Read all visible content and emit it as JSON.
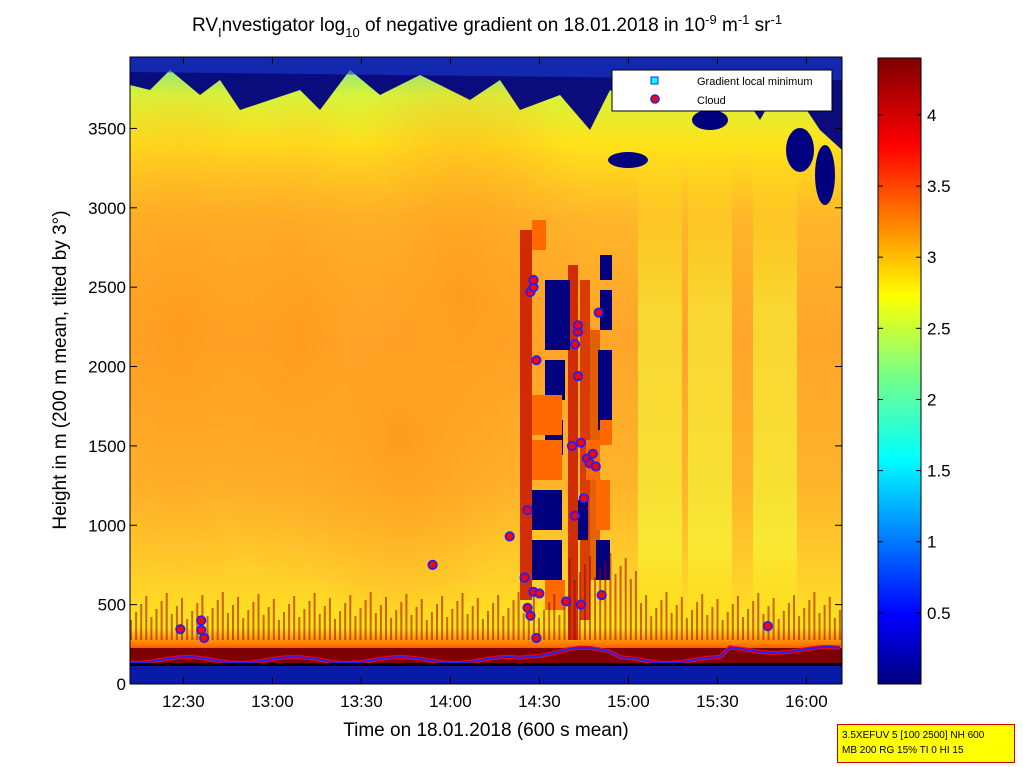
{
  "chart_data": {
    "type": "heatmap",
    "title": {
      "pre": "RV",
      "sub1": "I",
      "mid1": "nvestigator log",
      "sub2": "10",
      "mid2": " of negative gradient on 18.01.2018 in 10",
      "sup1": "-9",
      "mid3": " m",
      "sup2": "-1",
      "mid4": " sr",
      "sup3": "-1"
    },
    "xlabel": "Time on 18.01.2018 (600 s mean)",
    "ylabel": "Height in m (200 m mean, tilted by 3°)",
    "x_ticks": [
      "12:30",
      "13:00",
      "13:30",
      "14:00",
      "14:30",
      "15:00",
      "15:30",
      "16:00"
    ],
    "x_tick_minutes": [
      750,
      780,
      810,
      840,
      870,
      900,
      930,
      960
    ],
    "xlim_minutes": [
      732,
      972
    ],
    "y_ticks": [
      0,
      500,
      1000,
      1500,
      2000,
      2500,
      3000,
      3500
    ],
    "ylim": [
      0,
      3950
    ],
    "colorbar": {
      "ticks": [
        "0.5",
        "1",
        "1.5",
        "2",
        "2.5",
        "3",
        "3.5",
        "4"
      ],
      "tick_values": [
        0.5,
        1,
        1.5,
        2,
        2.5,
        3,
        3.5,
        4
      ],
      "range": [
        0,
        4.4
      ],
      "colormap": "jet"
    },
    "legend": {
      "position": "top-right",
      "entries": [
        {
          "label": "Gradient local minimum",
          "marker": "square",
          "color": "#00ffff"
        },
        {
          "label": "Cloud",
          "marker": "circle",
          "color": "#ff0000"
        }
      ]
    },
    "cloud_points": [
      [
        749,
        345
      ],
      [
        756,
        400
      ],
      [
        756,
        340
      ],
      [
        757,
        290
      ],
      [
        834,
        750
      ],
      [
        860,
        930
      ],
      [
        865,
        670
      ],
      [
        866,
        480
      ],
      [
        866,
        1095
      ],
      [
        867,
        2470
      ],
      [
        867,
        430
      ],
      [
        868,
        2500
      ],
      [
        868,
        2545
      ],
      [
        868,
        580
      ],
      [
        869,
        2040
      ],
      [
        869,
        290
      ],
      [
        870,
        570
      ],
      [
        879,
        520
      ],
      [
        881,
        1500
      ],
      [
        882,
        1060
      ],
      [
        882,
        2140
      ],
      [
        883,
        2220
      ],
      [
        883,
        2260
      ],
      [
        883,
        1940
      ],
      [
        884,
        1520
      ],
      [
        884,
        500
      ],
      [
        885,
        1170
      ],
      [
        886,
        1420
      ],
      [
        887,
        1390
      ],
      [
        888,
        1450
      ],
      [
        889,
        1370
      ],
      [
        890,
        2340
      ],
      [
        891,
        560
      ],
      [
        947,
        365
      ]
    ]
  },
  "info_box": {
    "line1": "3.5XEFUV 5 [100 2500] NH 600",
    "line2": "MB 200 RG 15% TI 0 HI 15"
  },
  "colors": {
    "cloud_fill": "#ff0000",
    "cloud_edge": "#2020ff",
    "gradient_min": "#00ffff",
    "info_box_bg": "#ffff00",
    "info_box_border": "#cc0000"
  }
}
